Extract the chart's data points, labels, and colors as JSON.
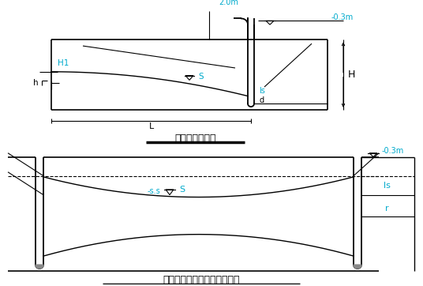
{
  "bg_color": "#ffffff",
  "line_color": "#000000",
  "cyan_color": "#00aacc",
  "title1": "井点管埋设深度",
  "title2": "承压水完整井涌水量计算简图",
  "label_H1": "H1",
  "label_h": "h",
  "label_H": "H",
  "label_s": "S",
  "label_L": "L",
  "label_2m": "2.0m",
  "label_03m_top": "-0.3m",
  "label_03m_bot": "-0.3m",
  "label_d": "d",
  "label_ls": "ls",
  "label_s2": "S",
  "label_r": "r",
  "label_ls2": "ls",
  "label_minus_s": "-s.s"
}
